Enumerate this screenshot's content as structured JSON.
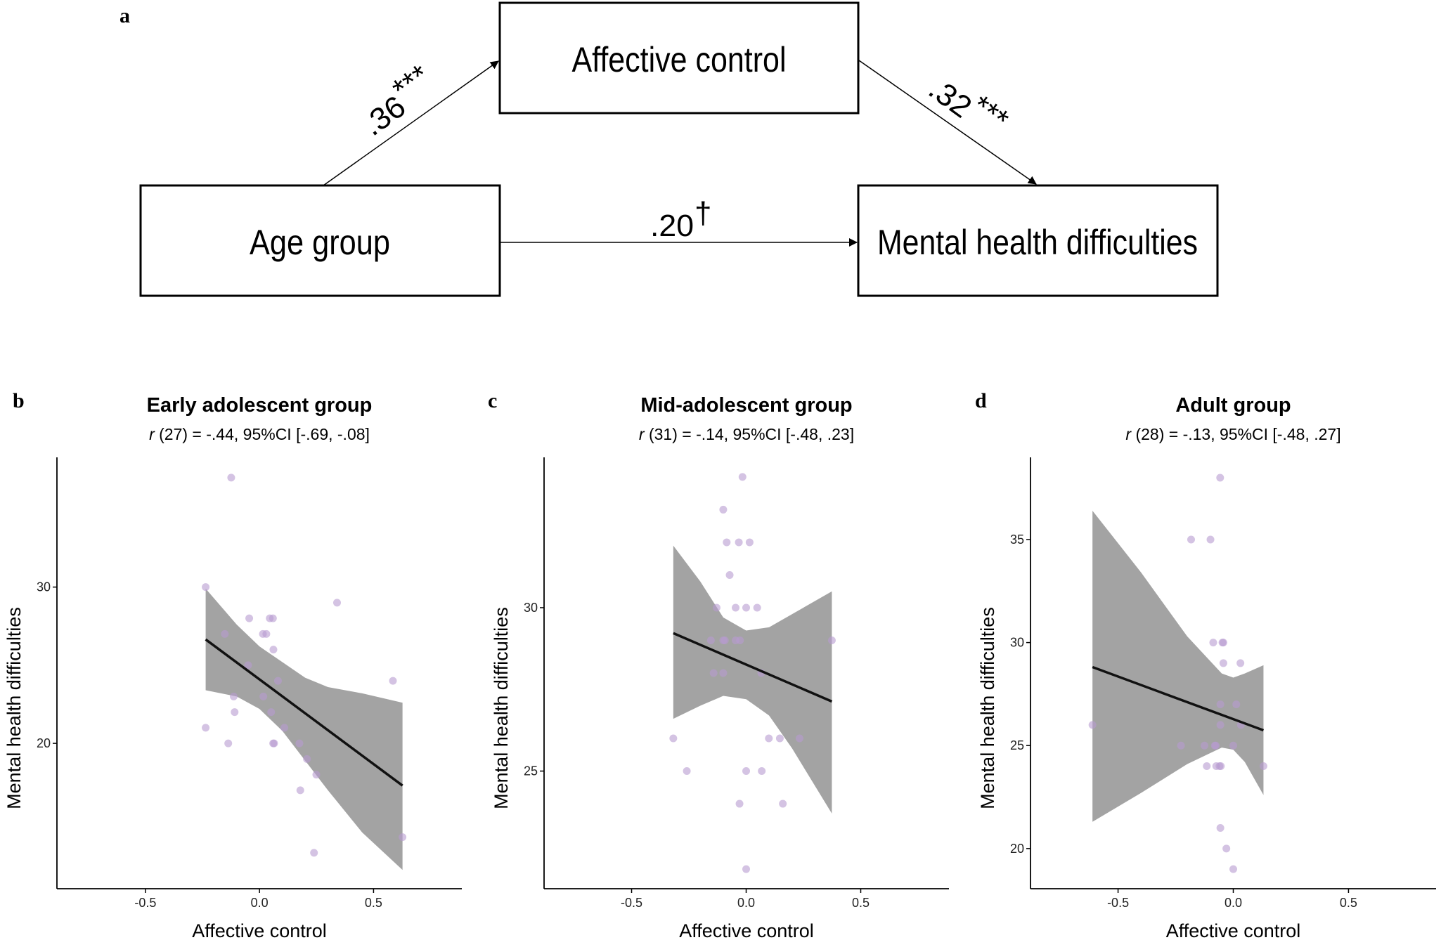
{
  "panel_a": {
    "letter": "a",
    "nodes": {
      "mediator": "Affective control",
      "predictor": "Age group",
      "outcome": "Mental health difficulties"
    },
    "paths": {
      "a_path": {
        "value": ".36",
        "sig": "***"
      },
      "b_path": {
        "value": ".32",
        "sig": "***"
      },
      "c_path": {
        "value": ".20",
        "sig": "†"
      }
    }
  },
  "chart_data": [
    {
      "type": "scatter",
      "letter": "b",
      "title": "Early adolescent group",
      "subtitle_r": "r",
      "subtitle_rest": " (27) = -.44, 95%CI [-.69, -.08]",
      "xlabel": "Affective control",
      "ylabel": "Mental health difficulties",
      "xlim": [
        -0.888,
        0.887
      ],
      "ylim": [
        10.7,
        38.3
      ],
      "xticks": [
        "-0.5",
        "0.0",
        "0.5"
      ],
      "xtick_values": [
        -0.5,
        0,
        0.5
      ],
      "yticks": [
        "20",
        "30"
      ],
      "ytick_values": [
        20,
        30
      ],
      "points": [
        [
          -0.124,
          37
        ],
        [
          -0.236,
          30
        ],
        [
          0.34,
          29
        ],
        [
          -0.045,
          28
        ],
        [
          0.045,
          28
        ],
        [
          0.059,
          28
        ],
        [
          -0.152,
          27
        ],
        [
          0.015,
          27
        ],
        [
          0.03,
          27
        ],
        [
          0.061,
          26
        ],
        [
          -0.05,
          25
        ],
        [
          0.081,
          24
        ],
        [
          0.585,
          24
        ],
        [
          -0.113,
          23
        ],
        [
          0.017,
          23
        ],
        [
          -0.109,
          22
        ],
        [
          0.051,
          22
        ],
        [
          -0.236,
          21
        ],
        [
          0.109,
          21
        ],
        [
          -0.137,
          20
        ],
        [
          0.06,
          20
        ],
        [
          0.064,
          20
        ],
        [
          0.175,
          20
        ],
        [
          0.208,
          19
        ],
        [
          0.249,
          18
        ],
        [
          0.179,
          17
        ],
        [
          0.627,
          14
        ],
        [
          0.239,
          13
        ]
      ],
      "fit_line": [
        [
          -0.236,
          26.65
        ],
        [
          0.627,
          17.3
        ]
      ],
      "ci_upper": [
        [
          -0.236,
          29.9
        ],
        [
          -0.1,
          27.6
        ],
        [
          0,
          26.2
        ],
        [
          0.1,
          25.2
        ],
        [
          0.2,
          24.2
        ],
        [
          0.3,
          23.6
        ],
        [
          0.45,
          23.2
        ],
        [
          0.627,
          22.6
        ]
      ],
      "ci_lower": [
        [
          -0.236,
          23.4
        ],
        [
          -0.1,
          23.0
        ],
        [
          0,
          22.2
        ],
        [
          0.1,
          20.8
        ],
        [
          0.2,
          18.9
        ],
        [
          0.3,
          17.0
        ],
        [
          0.45,
          14.3
        ],
        [
          0.627,
          11.9
        ]
      ]
    },
    {
      "type": "scatter",
      "letter": "c",
      "title": "Mid-adolescent group",
      "subtitle_r": "r",
      "subtitle_rest": " (31) = -.14, 95%CI [-.48, .23]",
      "xlabel": "Affective control",
      "ylabel": "Mental health difficulties",
      "xlim": [
        -0.882,
        0.885
      ],
      "ylim": [
        21.4,
        34.6
      ],
      "xticks": [
        "-0.5",
        "0.0",
        "0.5"
      ],
      "xtick_values": [
        -0.5,
        0,
        0.5
      ],
      "yticks": [
        "25",
        "30"
      ],
      "ytick_values": [
        25,
        30
      ],
      "points": [
        [
          -0.016,
          34
        ],
        [
          -0.1,
          33
        ],
        [
          -0.085,
          32
        ],
        [
          -0.032,
          32
        ],
        [
          0.015,
          32
        ],
        [
          -0.072,
          31
        ],
        [
          -0.129,
          30
        ],
        [
          -0.046,
          30
        ],
        [
          0,
          30
        ],
        [
          0.048,
          30
        ],
        [
          -0.154,
          29
        ],
        [
          -0.1,
          29
        ],
        [
          -0.093,
          29
        ],
        [
          -0.046,
          29
        ],
        [
          -0.027,
          29
        ],
        [
          0.374,
          29
        ],
        [
          -0.142,
          28
        ],
        [
          -0.1,
          28
        ],
        [
          0.066,
          28
        ],
        [
          -0.318,
          26
        ],
        [
          0.099,
          26
        ],
        [
          0.147,
          26
        ],
        [
          0.233,
          26
        ],
        [
          -0.259,
          25
        ],
        [
          0,
          25
        ],
        [
          0.068,
          25
        ],
        [
          -0.029,
          24
        ],
        [
          0.16,
          24
        ],
        [
          0,
          22
        ]
      ],
      "fit_line": [
        [
          -0.318,
          29.22
        ],
        [
          0.374,
          27.13
        ]
      ],
      "ci_upper": [
        [
          -0.318,
          31.9
        ],
        [
          -0.2,
          30.8
        ],
        [
          -0.1,
          29.7
        ],
        [
          0,
          29.3
        ],
        [
          0.1,
          29.4
        ],
        [
          0.2,
          29.8
        ],
        [
          0.374,
          30.5
        ]
      ],
      "ci_lower": [
        [
          -0.318,
          26.6
        ],
        [
          -0.2,
          27.0
        ],
        [
          -0.1,
          27.3
        ],
        [
          0,
          27.2
        ],
        [
          0.1,
          26.7
        ],
        [
          0.2,
          25.7
        ],
        [
          0.374,
          23.7
        ]
      ]
    },
    {
      "type": "scatter",
      "letter": "d",
      "title": "Adult group",
      "subtitle_r": "r",
      "subtitle_rest": " (28) = -.13, 95%CI [-.48, .27]",
      "xlabel": "Affective control",
      "ylabel": "Mental health difficulties",
      "xlim": [
        -0.88,
        0.88
      ],
      "ylim": [
        18.05,
        38.99
      ],
      "xticks": [
        "-0.5",
        "0.0",
        "0.5"
      ],
      "xtick_values": [
        -0.5,
        0,
        0.5
      ],
      "yticks": [
        "20",
        "25",
        "30",
        "35"
      ],
      "ytick_values": [
        20,
        25,
        30,
        35
      ],
      "points": [
        [
          -0.057,
          38
        ],
        [
          -0.183,
          35
        ],
        [
          -0.099,
          35
        ],
        [
          -0.087,
          30
        ],
        [
          -0.047,
          30
        ],
        [
          -0.043,
          30
        ],
        [
          -0.043,
          29
        ],
        [
          0.031,
          29
        ],
        [
          -0.056,
          27
        ],
        [
          0.013,
          27
        ],
        [
          -0.611,
          26
        ],
        [
          -0.056,
          26
        ],
        [
          0.033,
          26
        ],
        [
          -0.227,
          25
        ],
        [
          -0.125,
          25
        ],
        [
          -0.08,
          25
        ],
        [
          -0.076,
          25
        ],
        [
          0,
          25
        ],
        [
          -0.115,
          24
        ],
        [
          -0.074,
          24
        ],
        [
          -0.06,
          24
        ],
        [
          -0.054,
          24
        ],
        [
          0.131,
          24
        ],
        [
          -0.056,
          21
        ],
        [
          -0.03,
          20
        ],
        [
          0,
          19
        ]
      ],
      "fit_line": [
        [
          -0.611,
          28.81
        ],
        [
          0.131,
          25.74
        ]
      ],
      "ci_upper": [
        [
          -0.611,
          36.4
        ],
        [
          -0.4,
          33.4
        ],
        [
          -0.2,
          30.3
        ],
        [
          -0.05,
          28.5
        ],
        [
          0,
          28.3
        ],
        [
          0.05,
          28.5
        ],
        [
          0.131,
          28.9
        ]
      ],
      "ci_lower": [
        [
          -0.611,
          21.3
        ],
        [
          -0.4,
          22.7
        ],
        [
          -0.2,
          24.1
        ],
        [
          -0.05,
          24.9
        ],
        [
          0,
          24.8
        ],
        [
          0.05,
          24.2
        ],
        [
          0.131,
          22.6
        ]
      ]
    }
  ],
  "colors": {
    "points": "#b79bd0",
    "ci_band": "#a3a3a3",
    "fit_line": "#111111"
  }
}
